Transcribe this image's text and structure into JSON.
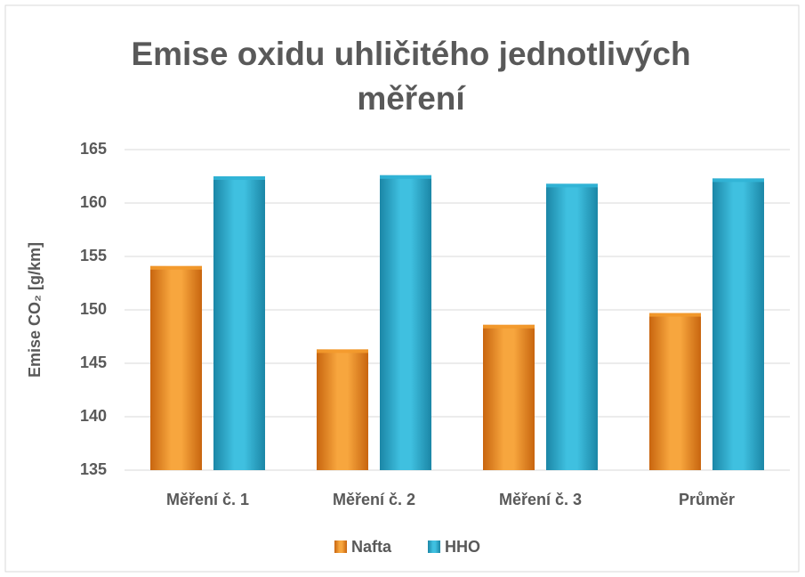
{
  "chart_data": {
    "type": "bar",
    "title": "Emise oxidu uhličitého jednotlivých měření",
    "y_label": "Emise CO₂ [g/km]",
    "categories": [
      "Měření č. 1",
      "Měření č. 2",
      "Měření č. 3",
      "Průměr"
    ],
    "series": [
      {
        "name": "Nafta",
        "color": "#f39a2c",
        "values": [
          154.1,
          146.3,
          148.6,
          149.7
        ]
      },
      {
        "name": "HHO",
        "color": "#31b4d6",
        "values": [
          162.5,
          162.6,
          161.8,
          162.3
        ]
      }
    ],
    "ylim": [
      135,
      165
    ],
    "yticks": [
      135,
      140,
      145,
      150,
      155,
      160,
      165
    ],
    "grid": true,
    "legend": "bottom"
  }
}
